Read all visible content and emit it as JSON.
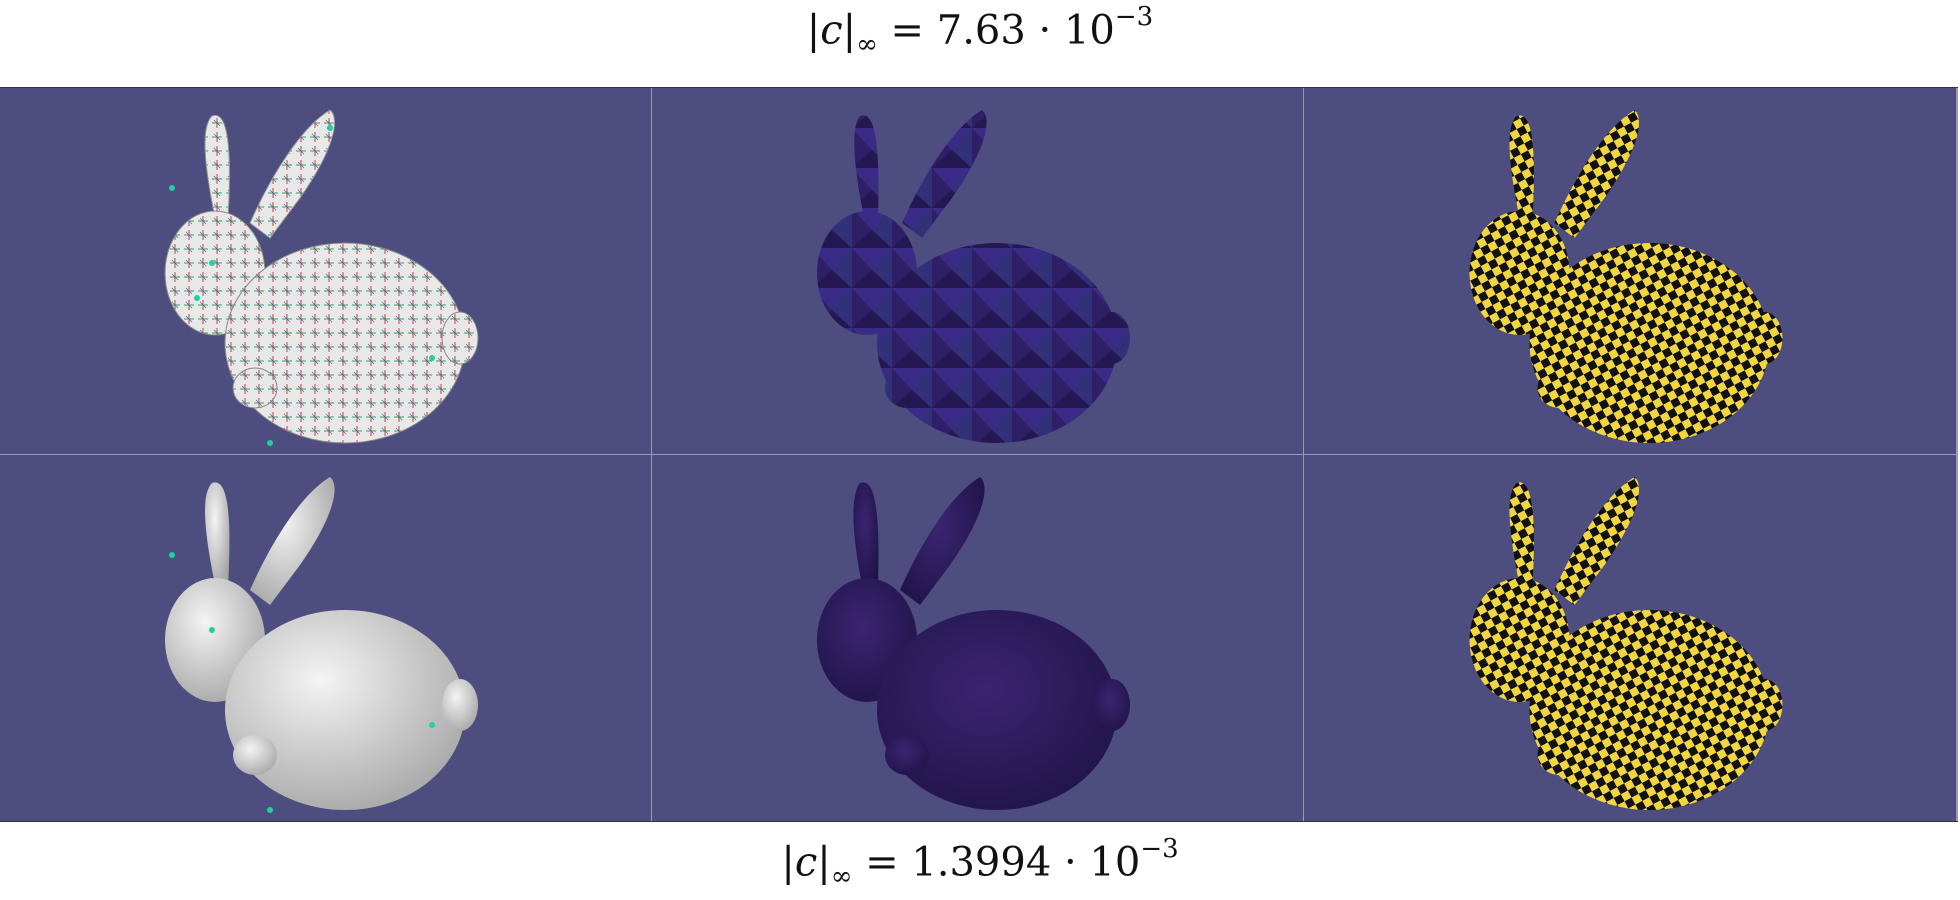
{
  "captions": {
    "top": {
      "lhs": "|c|",
      "sub": "∞",
      "eq": " = 7.63 · 10",
      "exp": "−3"
    },
    "bottom": {
      "lhs": "|c|",
      "sub": "∞",
      "eq": " = 1.3994 · 10",
      "exp": "−3"
    }
  },
  "colors": {
    "background": "#4d4d80",
    "mesh_white": "#e6e6e6",
    "mesh_purple": "#2c1c5a",
    "checker_yellow": "#f2d640",
    "checker_black": "#111111"
  },
  "panels": [
    {
      "row": 1,
      "col": 1,
      "style": "white-with-cross-field"
    },
    {
      "row": 1,
      "col": 2,
      "style": "purple-faceted-error"
    },
    {
      "row": 1,
      "col": 3,
      "style": "checkerboard"
    },
    {
      "row": 2,
      "col": 1,
      "style": "white-smooth"
    },
    {
      "row": 2,
      "col": 2,
      "style": "purple-smooth"
    },
    {
      "row": 2,
      "col": 3,
      "style": "checkerboard"
    }
  ]
}
